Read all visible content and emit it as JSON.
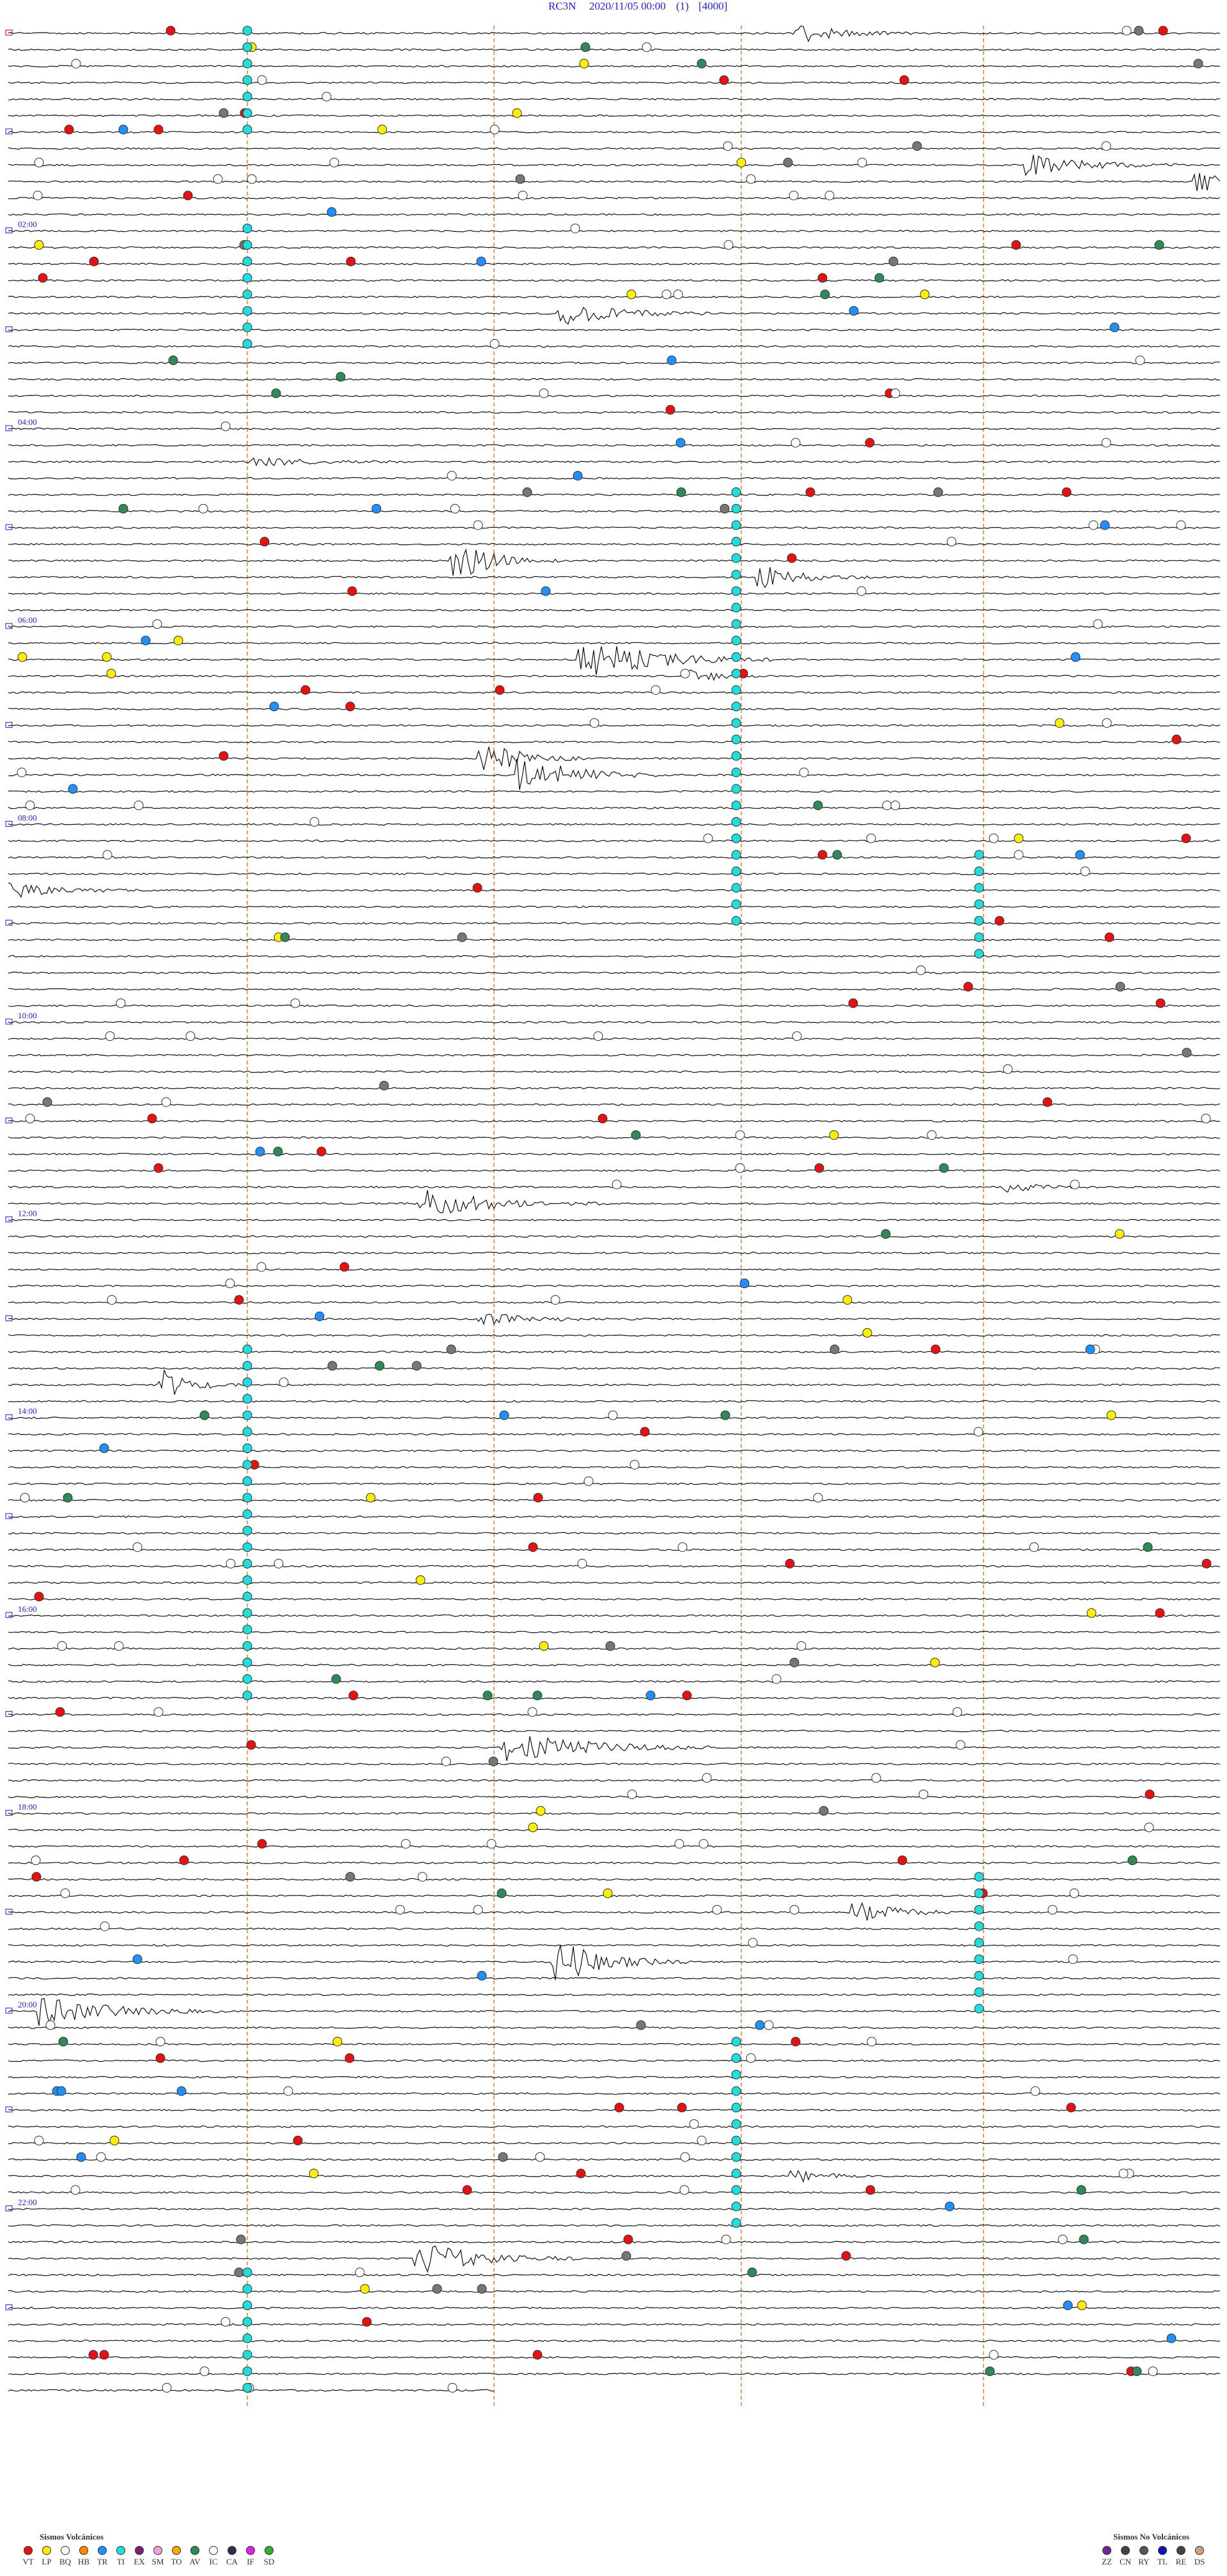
{
  "header": {
    "station": "RC3N",
    "datetime": "2020/11/05 00:00",
    "channel": "(1)",
    "scale": "[4000]"
  },
  "hour_labels": [
    "02:00",
    "04:00",
    "06:00",
    "08:00",
    "10:00",
    "12:00",
    "14:00",
    "16:00",
    "18:00",
    "20:00",
    "22:00"
  ],
  "legend": {
    "volcanic": {
      "title": "Sismos Volcánicos",
      "items": [
        "VT",
        "LP",
        "BQ",
        "HB",
        "TR",
        "TI",
        "EX",
        "SM",
        "TO",
        "AV",
        "IC",
        "CA",
        "IF",
        "SD"
      ]
    },
    "non_volcanic": {
      "title": "Sismos No Volcánicos",
      "items": [
        "ZZ",
        "CN",
        "RY",
        "TL",
        "RE",
        "DS"
      ]
    }
  }
}
